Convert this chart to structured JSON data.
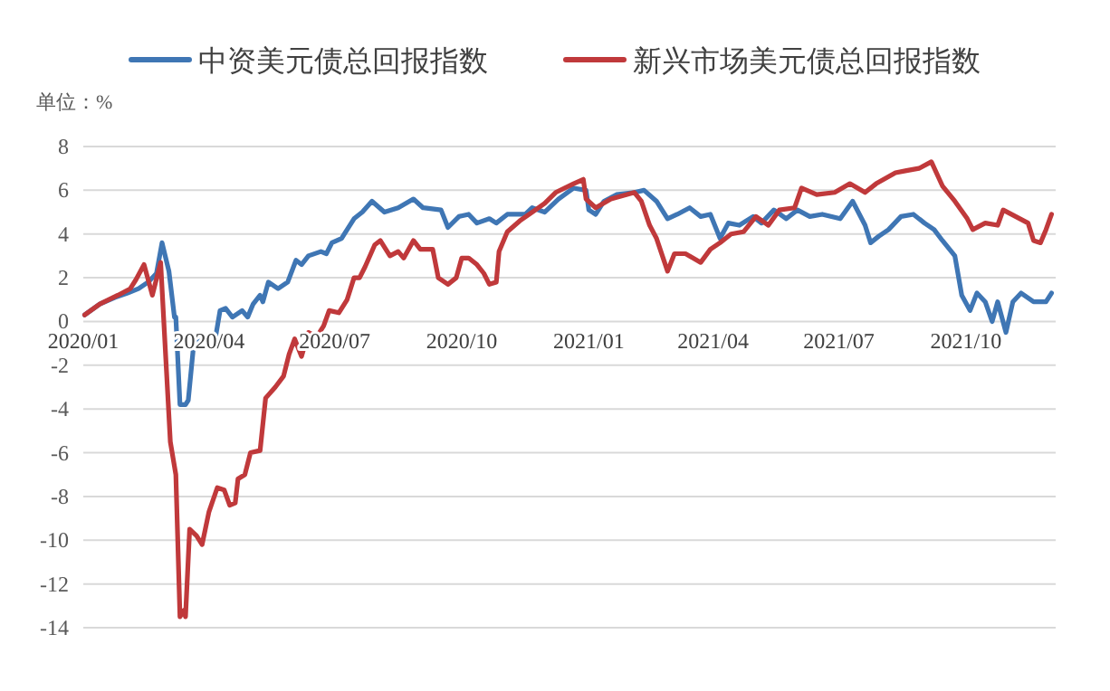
{
  "chart_data": {
    "type": "line",
    "annotations": [
      "单位：%"
    ],
    "xlim": [
      "2020-01-01",
      "2021-12-05"
    ],
    "xticks": [
      {
        "value": "2020-01-01",
        "label": "2020/01"
      },
      {
        "value": "2020-04-01",
        "label": "2020/04"
      },
      {
        "value": "2020-07-01",
        "label": "2020/07"
      },
      {
        "value": "2020-10-01",
        "label": "2020/10"
      },
      {
        "value": "2021-01-01",
        "label": "2021/01"
      },
      {
        "value": "2021-04-01",
        "label": "2021/04"
      },
      {
        "value": "2021-07-01",
        "label": "2021/07"
      },
      {
        "value": "2021-10-01",
        "label": "2021/10"
      }
    ],
    "ylim": [
      -14,
      8
    ],
    "yticks": [
      -14,
      -12,
      -10,
      -8,
      -6,
      -4,
      -2,
      0,
      2,
      4,
      6,
      8
    ],
    "grid": "y",
    "legend": "top",
    "line_style": "solid",
    "series": [
      {
        "name": "中资美元债总回报指数",
        "color": "#3f76b4",
        "x": [
          "2020-01-02",
          "2020-01-13",
          "2020-01-24",
          "2020-02-02",
          "2020-02-10",
          "2020-02-17",
          "2020-02-23",
          "2020-02-27",
          "2020-03-03",
          "2020-03-07",
          "2020-03-08",
          "2020-03-11",
          "2020-03-15",
          "2020-03-17",
          "2020-03-21",
          "2020-03-29",
          "2020-04-05",
          "2020-04-09",
          "2020-04-13",
          "2020-04-18",
          "2020-04-25",
          "2020-04-29",
          "2020-05-03",
          "2020-05-08",
          "2020-05-10",
          "2020-05-14",
          "2020-05-21",
          "2020-05-28",
          "2020-06-03",
          "2020-06-07",
          "2020-06-12",
          "2020-06-21",
          "2020-06-25",
          "2020-06-29",
          "2020-07-06",
          "2020-07-15",
          "2020-07-21",
          "2020-07-28",
          "2020-08-06",
          "2020-08-16",
          "2020-08-27",
          "2020-09-03",
          "2020-09-16",
          "2020-09-21",
          "2020-09-29",
          "2020-10-06",
          "2020-10-12",
          "2020-10-21",
          "2020-10-26",
          "2020-11-03",
          "2020-11-16",
          "2020-11-21",
          "2020-11-30",
          "2020-12-10",
          "2020-12-21",
          "2020-12-30",
          "2021-01-01",
          "2021-01-06",
          "2021-01-12",
          "2021-01-21",
          "2021-02-03",
          "2021-02-10",
          "2021-02-19",
          "2021-02-27",
          "2021-03-06",
          "2021-03-15",
          "2021-03-23",
          "2021-03-30",
          "2021-04-06",
          "2021-04-12",
          "2021-04-20",
          "2021-04-30",
          "2021-05-06",
          "2021-05-15",
          "2021-05-24",
          "2021-06-01",
          "2021-06-10",
          "2021-06-19",
          "2021-07-02",
          "2021-07-11",
          "2021-07-20",
          "2021-07-24",
          "2021-07-30",
          "2021-08-06",
          "2021-08-15",
          "2021-08-24",
          "2021-09-01",
          "2021-09-08",
          "2021-09-14",
          "2021-09-23",
          "2021-09-28",
          "2021-10-04",
          "2021-10-09",
          "2021-10-15",
          "2021-10-20",
          "2021-10-24",
          "2021-10-30",
          "2021-11-04",
          "2021-11-10",
          "2021-11-19",
          "2021-11-28",
          "2021-12-02"
        ],
        "values": [
          0.3,
          0.8,
          1.1,
          1.3,
          1.5,
          1.8,
          2.2,
          3.6,
          2.3,
          0.2,
          0.2,
          -3.8,
          -3.8,
          -3.6,
          -1.0,
          -0.8,
          -1.0,
          0.5,
          0.6,
          0.2,
          0.5,
          0.2,
          0.8,
          1.2,
          0.9,
          1.8,
          1.5,
          1.8,
          2.8,
          2.6,
          3.0,
          3.2,
          3.1,
          3.6,
          3.8,
          4.7,
          5.0,
          5.5,
          5.0,
          5.2,
          5.6,
          5.2,
          5.1,
          4.3,
          4.8,
          4.9,
          4.5,
          4.7,
          4.5,
          4.9,
          4.9,
          5.2,
          5.0,
          5.6,
          6.1,
          6.0,
          5.1,
          4.9,
          5.5,
          5.8,
          5.9,
          6.0,
          5.5,
          4.7,
          4.9,
          5.2,
          4.8,
          4.9,
          3.8,
          4.5,
          4.4,
          4.8,
          4.5,
          5.1,
          4.7,
          5.1,
          4.8,
          4.9,
          4.7,
          5.5,
          4.4,
          3.6,
          3.9,
          4.2,
          4.8,
          4.9,
          4.5,
          4.2,
          3.7,
          3.0,
          1.2,
          0.5,
          1.3,
          0.9,
          0.0,
          0.9,
          -0.5,
          0.9,
          1.3,
          0.9,
          0.9,
          1.3
        ]
      },
      {
        "name": "新兴市场美元债总回报指数",
        "color": "#c0393b",
        "x": [
          "2020-01-02",
          "2020-01-13",
          "2020-01-26",
          "2020-02-04",
          "2020-02-08",
          "2020-02-14",
          "2020-02-20",
          "2020-02-26",
          "2020-03-01",
          "2020-03-04",
          "2020-03-08",
          "2020-03-11",
          "2020-03-14",
          "2020-03-15",
          "2020-03-18",
          "2020-03-23",
          "2020-03-27",
          "2020-04-01",
          "2020-04-07",
          "2020-04-12",
          "2020-04-16",
          "2020-04-20",
          "2020-04-22",
          "2020-04-27",
          "2020-05-01",
          "2020-05-08",
          "2020-05-12",
          "2020-05-19",
          "2020-05-25",
          "2020-05-29",
          "2020-06-02",
          "2020-06-07",
          "2020-06-12",
          "2020-06-18",
          "2020-06-23",
          "2020-06-27",
          "2020-07-04",
          "2020-07-10",
          "2020-07-15",
          "2020-07-19",
          "2020-07-23",
          "2020-07-30",
          "2020-08-03",
          "2020-08-10",
          "2020-08-16",
          "2020-08-20",
          "2020-08-27",
          "2020-09-01",
          "2020-09-10",
          "2020-09-14",
          "2020-09-21",
          "2020-09-27",
          "2020-10-01",
          "2020-10-06",
          "2020-10-12",
          "2020-10-17",
          "2020-10-21",
          "2020-10-26",
          "2020-10-28",
          "2020-11-03",
          "2020-11-12",
          "2020-11-21",
          "2020-11-30",
          "2020-12-08",
          "2020-12-21",
          "2020-12-28",
          "2020-12-30",
          "2021-01-06",
          "2021-01-17",
          "2021-02-03",
          "2021-02-08",
          "2021-02-14",
          "2021-02-19",
          "2021-02-27",
          "2021-03-04",
          "2021-03-12",
          "2021-03-23",
          "2021-03-30",
          "2021-04-06",
          "2021-04-14",
          "2021-04-23",
          "2021-05-02",
          "2021-05-11",
          "2021-05-19",
          "2021-05-30",
          "2021-06-04",
          "2021-06-15",
          "2021-06-28",
          "2021-07-09",
          "2021-07-20",
          "2021-07-28",
          "2021-08-11",
          "2021-08-19",
          "2021-08-28",
          "2021-09-06",
          "2021-09-14",
          "2021-09-23",
          "2021-10-02",
          "2021-10-06",
          "2021-10-15",
          "2021-10-24",
          "2021-10-28",
          "2021-11-06",
          "2021-11-15",
          "2021-11-19",
          "2021-11-24",
          "2021-11-28",
          "2021-12-02"
        ],
        "values": [
          0.3,
          0.8,
          1.2,
          1.5,
          1.9,
          2.6,
          1.2,
          2.7,
          -2.0,
          -5.5,
          -7.0,
          -13.5,
          -13.2,
          -13.5,
          -9.5,
          -9.8,
          -10.2,
          -8.7,
          -7.6,
          -7.7,
          -8.4,
          -8.3,
          -7.2,
          -7.0,
          -6.0,
          -5.9,
          -3.5,
          -3.0,
          -2.5,
          -1.5,
          -0.8,
          -1.6,
          -0.5,
          -0.7,
          -0.2,
          0.5,
          0.4,
          1.0,
          2.0,
          2.0,
          2.5,
          3.5,
          3.7,
          3.0,
          3.2,
          2.9,
          3.7,
          3.3,
          3.3,
          2.0,
          1.7,
          2.0,
          2.9,
          2.9,
          2.6,
          2.2,
          1.7,
          1.8,
          3.2,
          4.1,
          4.6,
          5.0,
          5.4,
          5.9,
          6.3,
          6.5,
          5.6,
          5.2,
          5.6,
          5.9,
          5.5,
          4.4,
          3.8,
          2.3,
          3.1,
          3.1,
          2.7,
          3.3,
          3.6,
          4.0,
          4.1,
          4.8,
          4.4,
          5.1,
          5.2,
          6.1,
          5.8,
          5.9,
          6.3,
          5.9,
          6.3,
          6.8,
          6.9,
          7.0,
          7.3,
          6.2,
          5.5,
          4.7,
          4.2,
          4.5,
          4.4,
          5.1,
          4.8,
          4.5,
          3.7,
          3.6,
          4.2,
          4.9
        ]
      }
    ]
  }
}
